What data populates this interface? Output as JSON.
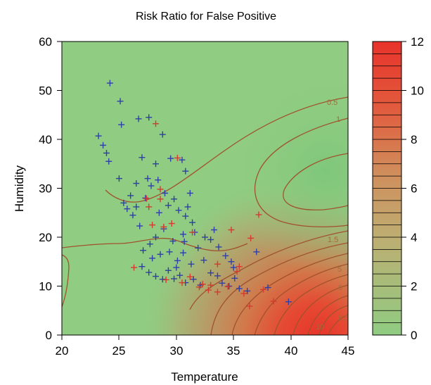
{
  "chart_data": {
    "type": "heatmap",
    "title": "Risk Ratio for False Positive",
    "xlabel": "Temperature",
    "ylabel": "Humidity",
    "xlim": [
      20,
      45
    ],
    "ylim": [
      0,
      60
    ],
    "x_ticks": [
      "20",
      "25",
      "30",
      "35",
      "40",
      "45"
    ],
    "y_ticks": [
      "0",
      "10",
      "20",
      "30",
      "40",
      "50",
      "60"
    ],
    "colorbar": {
      "range": [
        0,
        12
      ],
      "ticks": [
        "0",
        "2",
        "4",
        "6",
        "8",
        "10",
        "12"
      ],
      "low_color": "#90cc82",
      "mid_color": "#c9a26e",
      "high_color": "#e83a2a"
    },
    "contour_labels": [
      "0.5",
      "1",
      "1.5",
      "5",
      "6",
      "8.5",
      "10"
    ],
    "contour_color": "#a0522d",
    "series": [
      {
        "marker": "+",
        "color": "#2f3fa8",
        "points": [
          [
            24.2,
            51.5
          ],
          [
            25.1,
            47.8
          ],
          [
            25.2,
            43.0
          ],
          [
            26.7,
            44.2
          ],
          [
            27.6,
            44.5
          ],
          [
            28.8,
            41.0
          ],
          [
            23.2,
            40.7
          ],
          [
            23.6,
            38.8
          ],
          [
            23.9,
            37.2
          ],
          [
            24.1,
            35.5
          ],
          [
            27.0,
            36.3
          ],
          [
            28.2,
            35.0
          ],
          [
            29.5,
            36.1
          ],
          [
            30.5,
            35.8
          ],
          [
            30.8,
            33.5
          ],
          [
            27.5,
            32.0
          ],
          [
            26.5,
            31.0
          ],
          [
            26.0,
            28.5
          ],
          [
            25.0,
            32.0
          ],
          [
            25.4,
            27.0
          ],
          [
            26.2,
            24.5
          ],
          [
            26.5,
            26.2
          ],
          [
            27.3,
            28.0
          ],
          [
            27.8,
            30.5
          ],
          [
            28.4,
            31.7
          ],
          [
            29.0,
            29.0
          ],
          [
            29.3,
            26.5
          ],
          [
            29.8,
            27.8
          ],
          [
            30.2,
            25.5
          ],
          [
            30.8,
            24.3
          ],
          [
            31.0,
            26.2
          ],
          [
            31.4,
            23.0
          ],
          [
            31.6,
            21.0
          ],
          [
            30.6,
            20.6
          ],
          [
            29.7,
            19.2
          ],
          [
            28.9,
            21.7
          ],
          [
            28.2,
            20.0
          ],
          [
            27.7,
            18.6
          ],
          [
            27.1,
            17.3
          ],
          [
            27.9,
            15.7
          ],
          [
            28.6,
            16.5
          ],
          [
            29.4,
            17.0
          ],
          [
            30.1,
            15.2
          ],
          [
            30.6,
            16.8
          ],
          [
            31.3,
            14.5
          ],
          [
            31.9,
            17.8
          ],
          [
            32.4,
            15.3
          ],
          [
            33.0,
            19.5
          ],
          [
            33.7,
            18.0
          ],
          [
            34.3,
            16.2
          ],
          [
            34.8,
            15.0
          ],
          [
            35.0,
            13.8
          ],
          [
            27.0,
            14.0
          ],
          [
            27.6,
            12.8
          ],
          [
            28.2,
            12.0
          ],
          [
            28.8,
            11.4
          ],
          [
            29.3,
            13.2
          ],
          [
            29.8,
            11.5
          ],
          [
            30.3,
            12.2
          ],
          [
            30.8,
            10.7
          ],
          [
            31.5,
            11.4
          ],
          [
            32.1,
            10.2
          ],
          [
            33.0,
            12.7
          ],
          [
            33.6,
            12.1
          ],
          [
            34.0,
            10.6
          ],
          [
            34.6,
            10.0
          ],
          [
            35.1,
            11.6
          ],
          [
            35.5,
            9.5
          ],
          [
            36.2,
            9.0
          ],
          [
            37.0,
            17.0
          ],
          [
            38.0,
            9.7
          ],
          [
            39.8,
            6.8
          ],
          [
            30.0,
            13.8
          ],
          [
            30.7,
            19.1
          ],
          [
            32.5,
            20.0
          ],
          [
            33.3,
            21.5
          ],
          [
            28.5,
            25.0
          ],
          [
            26.8,
            22.3
          ],
          [
            25.7,
            25.8
          ],
          [
            31.2,
            29.0
          ]
        ]
      },
      {
        "marker": "+",
        "color": "#d23b2e",
        "points": [
          [
            28.2,
            43.2
          ],
          [
            30.1,
            36.2
          ],
          [
            28.6,
            27.8
          ],
          [
            27.6,
            26.2
          ],
          [
            27.9,
            22.5
          ],
          [
            28.9,
            22.1
          ],
          [
            29.6,
            22.8
          ],
          [
            31.4,
            21.0
          ],
          [
            34.8,
            21.5
          ],
          [
            36.5,
            19.8
          ],
          [
            37.2,
            24.6
          ],
          [
            26.3,
            13.8
          ],
          [
            29.1,
            11.3
          ],
          [
            30.5,
            10.7
          ],
          [
            31.2,
            11.9
          ],
          [
            32.0,
            9.8
          ],
          [
            32.3,
            10.4
          ],
          [
            32.8,
            9.2
          ],
          [
            33.0,
            10.2
          ],
          [
            33.6,
            8.8
          ],
          [
            34.5,
            9.9
          ],
          [
            35.5,
            14.0
          ],
          [
            35.9,
            8.5
          ],
          [
            36.4,
            5.9
          ],
          [
            37.6,
            9.3
          ],
          [
            38.5,
            6.9
          ],
          [
            33.6,
            14.5
          ],
          [
            35.3,
            13.0
          ],
          [
            27.4,
            27.9
          ],
          [
            28.6,
            29.8
          ]
        ]
      }
    ],
    "grid": false,
    "legend": "none"
  }
}
